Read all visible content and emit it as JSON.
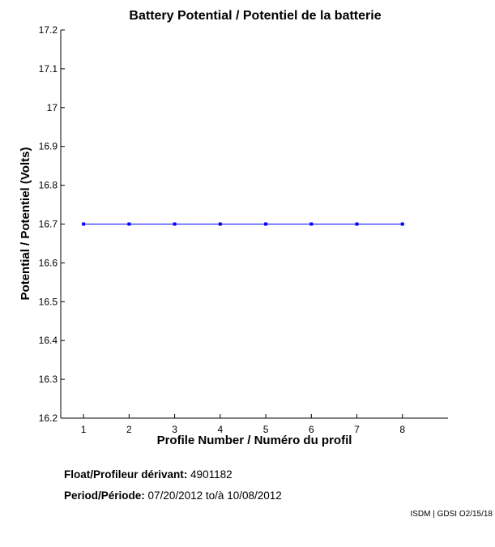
{
  "chart_data": {
    "type": "line",
    "title": "Battery Potential / Potentiel de la batterie",
    "xlabel": "Profile Number / Numéro du profil",
    "ylabel": "Potential / Potentiel (Volts)",
    "x": [
      1,
      2,
      3,
      4,
      5,
      6,
      7,
      8
    ],
    "xlim": [
      0.5,
      9
    ],
    "ylim": [
      16.2,
      17.2
    ],
    "xticks": [
      "1",
      "2",
      "3",
      "4",
      "5",
      "6",
      "7",
      "8"
    ],
    "yticks": [
      "16.2",
      "16.3",
      "16.4",
      "16.5",
      "16.6",
      "16.7",
      "16.8",
      "16.9",
      "17",
      "17.1",
      "17.2"
    ],
    "grid": false,
    "series": [
      {
        "values": [
          16.7,
          16.7,
          16.7,
          16.7,
          16.7,
          16.7,
          16.7,
          16.7
        ],
        "color": "#0000ff"
      }
    ]
  },
  "info": {
    "float_label": "Float/Profileur dérivant:",
    "float_value": "4901182",
    "period_label": "Period/Période:",
    "period_start": "07/20/2012",
    "period_sep": "to/à",
    "period_end": "10/08/2012"
  },
  "credit": "ISDM | GDSI O2/15/18"
}
